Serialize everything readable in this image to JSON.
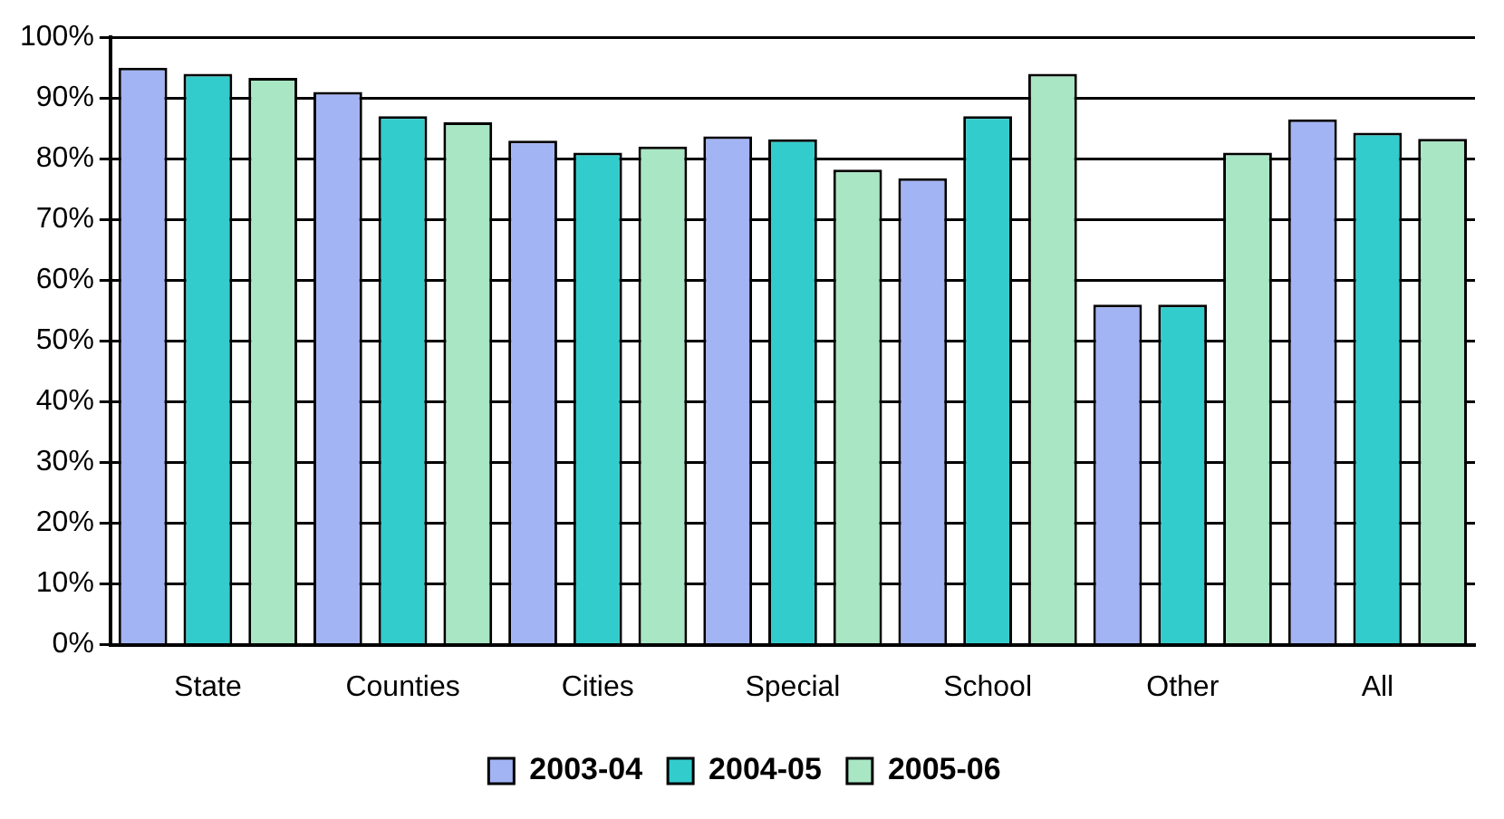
{
  "chart_data": {
    "type": "bar",
    "categories": [
      "State",
      "Counties",
      "Cities",
      "Special",
      "School",
      "Other",
      "All"
    ],
    "series": [
      {
        "name": "2003-04",
        "color": "#a3b4f5",
        "values": [
          95,
          91,
          83,
          83.7,
          76.8,
          56,
          86.5
        ]
      },
      {
        "name": "2004-05",
        "color": "#33cccc",
        "values": [
          94,
          87,
          81,
          83.2,
          87,
          56,
          84.3
        ]
      },
      {
        "name": "2005-06",
        "color": "#a8e6c4",
        "values": [
          93.3,
          86,
          82,
          78.2,
          94,
          81,
          83.3
        ]
      }
    ],
    "ylim": [
      0,
      100
    ],
    "yticks": [
      {
        "value": 0,
        "label": "0%"
      },
      {
        "value": 10,
        "label": "10%"
      },
      {
        "value": 20,
        "label": "20%"
      },
      {
        "value": 30,
        "label": "30%"
      },
      {
        "value": 40,
        "label": "40%"
      },
      {
        "value": 50,
        "label": "50%"
      },
      {
        "value": 60,
        "label": "60%"
      },
      {
        "value": 70,
        "label": "70%"
      },
      {
        "value": 80,
        "label": "80%"
      },
      {
        "value": 90,
        "label": "90%"
      },
      {
        "value": 100,
        "label": "100%"
      }
    ],
    "grid": "y",
    "legend": "bottom"
  }
}
